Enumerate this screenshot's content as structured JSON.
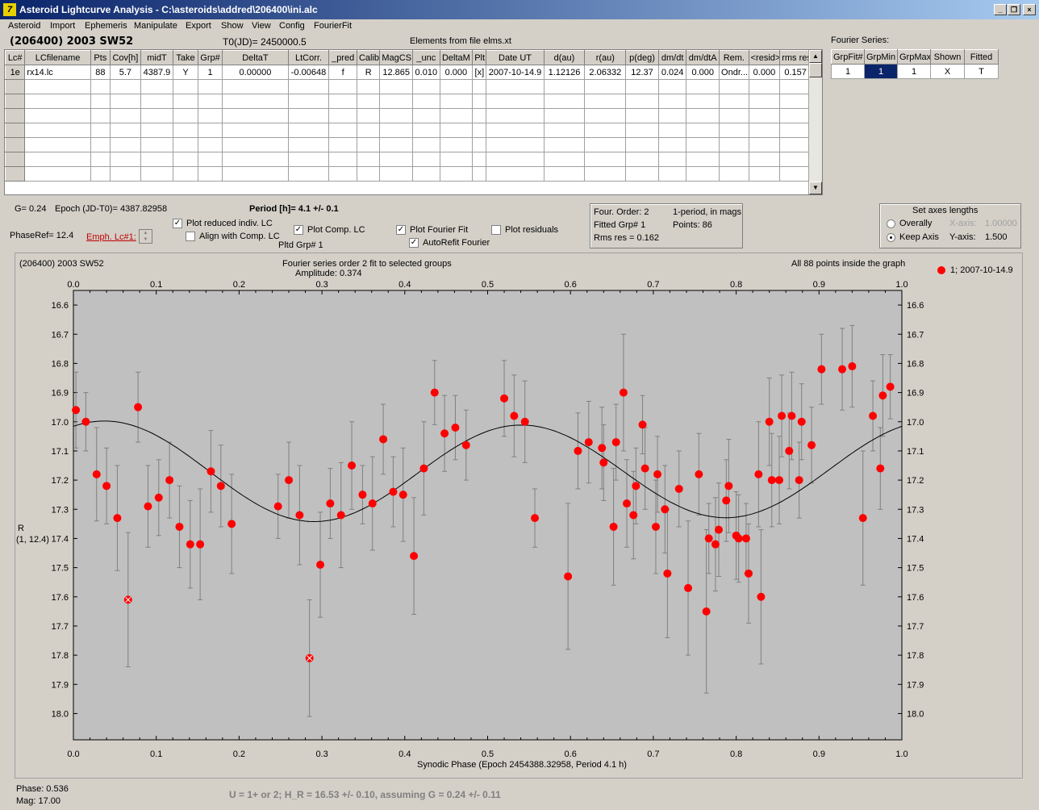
{
  "window": {
    "title": "Asteroid Lightcurve Analysis - C:\\asteroids\\addred\\206400\\ini.alc",
    "icon": "app-icon"
  },
  "menu": [
    "Asteroid",
    "Import",
    "Ephemeris",
    "Manipulate",
    "Export",
    "Show",
    "View",
    "Config",
    "FourierFit"
  ],
  "header": {
    "object": "(206400) 2003 SW52",
    "t0": "T0(JD)= 2450000.5",
    "elements": "Elements from file elms.xt"
  },
  "lc_table": {
    "columns": [
      "Lc#",
      "LCfilename",
      "Pts",
      "Cov[h]",
      "midT",
      "Take",
      "Grp#",
      "DeltaT",
      "LtCorr.",
      "_pred",
      "Calib",
      "MagCS",
      "_unc",
      "DeltaM",
      "Plt",
      "Date UT",
      "d(au)",
      "r(au)",
      "p(deg)",
      "dm/dt",
      "dm/dtA",
      "Rem.",
      "<resid>",
      "rms res"
    ],
    "rows": [
      [
        "1e",
        "rx14.lc",
        "88",
        "5.7",
        "4387.9",
        "Y",
        "1",
        "0.00000",
        "-0.00648",
        "f",
        "R",
        "12.865",
        "0.010",
        "0.000",
        "[x]",
        "2007-10-14.9",
        "1.12126",
        "2.06332",
        "12.37",
        "0.024",
        "0.000",
        "Ondr...",
        "0.000",
        "0.157"
      ]
    ]
  },
  "fourier_series": {
    "label": "Fourier Series:",
    "columns": [
      "GrpFit#",
      "GrpMin",
      "GrpMax",
      "Shown",
      "Fitted"
    ],
    "rows": [
      [
        "1",
        "1",
        "1",
        "X",
        "T"
      ]
    ]
  },
  "info": {
    "g": "G= 0.24",
    "epoch": "Epoch (JD-T0)= 4387.82958",
    "period": "Period [h]= 4.1 +/- 0.1",
    "phase_ref": "PhaseRef= 12.4",
    "emph": "Emph. Lc#1:",
    "pltd_grp": "Pltd Grp#  1"
  },
  "options": {
    "plot_reduced": {
      "label": "Plot reduced indiv. LC",
      "checked": true
    },
    "align_comp": {
      "label": "Align with Comp. LC",
      "checked": false
    },
    "plot_comp": {
      "label": "Plot Comp. LC",
      "checked": true
    },
    "plot_fourier": {
      "label": "Plot Fourier Fit",
      "checked": true
    },
    "autorefit": {
      "label": "AutoRefit Fourier",
      "checked": true
    },
    "plot_residuals": {
      "label": "Plot residuals",
      "checked": false
    }
  },
  "fourier_info": {
    "order": "Four. Order:  2",
    "mode": "1-period, in mags",
    "fitted_grp": "Fitted Grp# 1",
    "points": "Points: 86",
    "rms": "Rms res     = 0.162"
  },
  "axes_panel": {
    "title": "Set axes lengths",
    "overally": "Overally",
    "keep_axis": "Keep Axis",
    "x_axis_label": "X-axis:",
    "x_axis_value": "1.00000",
    "y_axis_label": "Y-axis:",
    "y_axis_value": "1.500",
    "selected": "keep_axis"
  },
  "plot_header": {
    "object": "(206400) 2003 SW52",
    "title": "Fourier series order 2 fit to selected groups",
    "amplitude": "Amplitude: 0.374",
    "points_note": "All 88 points inside the graph",
    "legend": "1; 2007-10-14.9"
  },
  "footer": {
    "phase": "Phase:  0.536",
    "mag": "Mag:   17.00",
    "result": "U = 1+ or 2; H_R = 16.53 +/- 0.10, assuming G = 0.24 +/- 0.11"
  },
  "colors": {
    "point": "#ff0000",
    "plot_bg": "#c0c0c0",
    "errorbar": "#808080",
    "fit": "#000000"
  },
  "chart_data": {
    "type": "scatter",
    "title": "Fourier series order 2 fit to selected groups",
    "xlabel": "Synodic Phase (Epoch 2454388.32958, Period 4.1 h)",
    "ylabel": "R",
    "ylabel2": "(1, 12.4)",
    "xlim": [
      0.0,
      1.0
    ],
    "ylim": [
      18.09,
      16.55
    ],
    "y_inverted": true,
    "x_ticks": [
      "0.0",
      "0.1",
      "0.2",
      "0.3",
      "0.4",
      "0.5",
      "0.6",
      "0.7",
      "0.8",
      "0.9",
      "1.0"
    ],
    "y_ticks": [
      "16.6",
      "16.7",
      "16.8",
      "16.9",
      "17.0",
      "17.1",
      "17.2",
      "17.3",
      "17.4",
      "17.5",
      "17.6",
      "17.7",
      "17.8",
      "17.9",
      "18.0"
    ],
    "series": [
      {
        "name": "1; 2007-10-14.9",
        "points": [
          [
            0.003,
            16.96,
            0.13
          ],
          [
            0.015,
            17.0,
            0.1
          ],
          [
            0.028,
            17.18,
            0.16
          ],
          [
            0.04,
            17.22,
            0.13
          ],
          [
            0.053,
            17.33,
            0.18
          ],
          [
            0.066,
            17.61,
            0.23
          ],
          [
            0.078,
            16.95,
            0.12
          ],
          [
            0.09,
            17.29,
            0.14
          ],
          [
            0.103,
            17.26,
            0.13
          ],
          [
            0.116,
            17.2,
            0.13
          ],
          [
            0.128,
            17.36,
            0.14
          ],
          [
            0.141,
            17.42,
            0.15
          ],
          [
            0.153,
            17.42,
            0.19
          ],
          [
            0.166,
            17.17,
            0.14
          ],
          [
            0.178,
            17.22,
            0.14
          ],
          [
            0.191,
            17.35,
            0.17
          ],
          [
            0.247,
            17.29,
            0.11
          ],
          [
            0.26,
            17.2,
            0.13
          ],
          [
            0.273,
            17.32,
            0.17
          ],
          [
            0.285,
            17.81,
            0.2
          ],
          [
            0.298,
            17.49,
            0.18
          ],
          [
            0.31,
            17.28,
            0.12
          ],
          [
            0.323,
            17.32,
            0.18
          ],
          [
            0.336,
            17.15,
            0.15
          ],
          [
            0.349,
            17.25,
            0.1
          ],
          [
            0.361,
            17.28,
            0.16
          ],
          [
            0.374,
            17.06,
            0.12
          ],
          [
            0.386,
            17.24,
            0.12
          ],
          [
            0.398,
            17.25,
            0.16
          ],
          [
            0.411,
            17.46,
            0.2
          ],
          [
            0.423,
            17.16,
            0.16
          ],
          [
            0.436,
            16.9,
            0.11
          ],
          [
            0.448,
            17.04,
            0.13
          ],
          [
            0.461,
            17.02,
            0.11
          ],
          [
            0.474,
            17.08,
            0.12
          ],
          [
            0.52,
            16.92,
            0.13
          ],
          [
            0.532,
            16.98,
            0.14
          ],
          [
            0.545,
            17.0,
            0.14
          ],
          [
            0.557,
            17.33,
            0.1
          ],
          [
            0.597,
            17.53,
            0.25
          ],
          [
            0.609,
            17.1,
            0.13
          ],
          [
            0.622,
            17.07,
            0.14
          ],
          [
            0.638,
            17.09,
            0.14
          ],
          [
            0.64,
            17.14,
            0.13
          ],
          [
            0.652,
            17.36,
            0.2
          ],
          [
            0.655,
            17.07,
            0.13
          ],
          [
            0.664,
            16.9,
            0.2
          ],
          [
            0.668,
            17.28,
            0.15
          ],
          [
            0.676,
            17.32,
            0.15
          ],
          [
            0.679,
            17.22,
            0.13
          ],
          [
            0.687,
            17.01,
            0.1
          ],
          [
            0.69,
            17.16,
            0.14
          ],
          [
            0.703,
            17.36,
            0.16
          ],
          [
            0.705,
            17.18,
            0.13
          ],
          [
            0.714,
            17.3,
            0.15
          ],
          [
            0.717,
            17.52,
            0.22
          ],
          [
            0.731,
            17.23,
            0.13
          ],
          [
            0.742,
            17.57,
            0.23
          ],
          [
            0.755,
            17.18,
            0.14
          ],
          [
            0.764,
            17.65,
            0.28
          ],
          [
            0.767,
            17.4,
            0.12
          ],
          [
            0.775,
            17.42,
            0.16
          ],
          [
            0.779,
            17.37,
            0.16
          ],
          [
            0.788,
            17.27,
            0.14
          ],
          [
            0.791,
            17.22,
            0.16
          ],
          [
            0.8,
            17.39,
            0.15
          ],
          [
            0.803,
            17.4,
            0.15
          ],
          [
            0.812,
            17.4,
            0.12
          ],
          [
            0.815,
            17.52,
            0.17
          ],
          [
            0.827,
            17.18,
            0.18
          ],
          [
            0.83,
            17.6,
            0.23
          ],
          [
            0.84,
            17.0,
            0.15
          ],
          [
            0.843,
            17.2,
            0.16
          ],
          [
            0.852,
            17.2,
            0.15
          ],
          [
            0.855,
            16.98,
            0.14
          ],
          [
            0.864,
            17.1,
            0.13
          ],
          [
            0.867,
            16.98,
            0.15
          ],
          [
            0.876,
            17.2,
            0.13
          ],
          [
            0.879,
            17.0,
            0.13
          ],
          [
            0.891,
            17.08,
            0.13
          ],
          [
            0.903,
            16.82,
            0.12
          ],
          [
            0.928,
            16.82,
            0.14
          ],
          [
            0.94,
            16.81,
            0.14
          ],
          [
            0.953,
            17.33,
            0.23
          ],
          [
            0.965,
            16.98,
            0.12
          ],
          [
            0.974,
            17.16,
            0.14
          ],
          [
            0.977,
            16.91,
            0.14
          ],
          [
            0.986,
            16.88,
            0.11
          ]
        ]
      }
    ],
    "emphasized_points": [
      5,
      19
    ],
    "fit_curve": {
      "mean": 17.17,
      "c1": -0.0083,
      "s1": 0.0047,
      "c2": -0.146,
      "s2": -0.078
    }
  }
}
